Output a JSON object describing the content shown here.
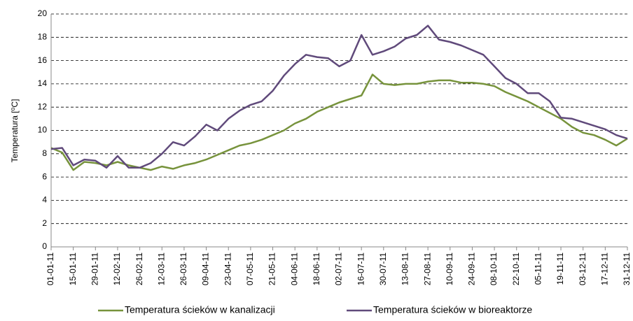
{
  "chart_data": {
    "type": "line",
    "ylabel": "Temperatura [⁰C]",
    "x": [
      "01-01-11",
      "08-01-11",
      "15-01-11",
      "22-01-11",
      "29-01-11",
      "05-02-11",
      "12-02-11",
      "19-02-11",
      "26-02-11",
      "05-03-11",
      "12-03-11",
      "19-03-11",
      "26-03-11",
      "02-04-11",
      "09-04-11",
      "16-04-11",
      "23-04-11",
      "30-04-11",
      "07-05-11",
      "14-05-11",
      "21-05-11",
      "28-05-11",
      "04-06-11",
      "11-06-11",
      "18-06-11",
      "25-06-11",
      "02-07-11",
      "09-07-11",
      "16-07-11",
      "23-07-11",
      "30-07-11",
      "06-08-11",
      "13-08-11",
      "20-08-11",
      "27-08-11",
      "03-09-11",
      "10-09-11",
      "17-09-11",
      "24-09-11",
      "01-10-11",
      "08-10-11",
      "15-10-11",
      "22-10-11",
      "29-10-11",
      "05-11-11",
      "12-11-11",
      "19-11-11",
      "26-11-11",
      "03-12-11",
      "10-12-11",
      "17-12-11",
      "24-12-11",
      "31-12-11"
    ],
    "xticks": [
      "01-01-11",
      "15-01-11",
      "29-01-11",
      "12-02-11",
      "26-02-11",
      "12-03-11",
      "26-03-11",
      "09-04-11",
      "23-04-11",
      "07-05-11",
      "21-05-11",
      "04-06-11",
      "18-06-11",
      "02-07-11",
      "16-07-11",
      "30-07-11",
      "13-08-11",
      "27-08-11",
      "10-09-11",
      "24-09-11",
      "08-10-11",
      "22-10-11",
      "05-11-11",
      "19-11-11",
      "03-12-11",
      "17-12-11",
      "31-12-11"
    ],
    "series": [
      {
        "name": "Temperatura ścieków w kanalizacji",
        "color": "#77933c",
        "values": [
          8.5,
          8.1,
          6.6,
          7.3,
          7.2,
          7.0,
          7.3,
          7.0,
          6.8,
          6.6,
          6.9,
          6.7,
          7.0,
          7.2,
          7.5,
          7.9,
          8.3,
          8.7,
          8.9,
          9.2,
          9.6,
          10.0,
          10.6,
          11.0,
          11.6,
          12.0,
          12.4,
          12.7,
          13.0,
          14.8,
          14.0,
          13.9,
          14.0,
          14.0,
          14.2,
          14.3,
          14.3,
          14.1,
          14.1,
          14.0,
          13.8,
          13.3,
          12.9,
          12.5,
          12.0,
          11.5,
          11.0,
          10.3,
          9.8,
          9.6,
          9.2,
          8.7,
          9.3
        ]
      },
      {
        "name": "Temperatura ścieków w bioreaktorze",
        "color": "#604a7b",
        "values": [
          8.4,
          8.5,
          7.0,
          7.5,
          7.4,
          6.8,
          7.8,
          6.8,
          6.8,
          7.2,
          8.0,
          9.0,
          8.7,
          9.5,
          10.5,
          10.0,
          11.0,
          11.7,
          12.2,
          12.5,
          13.4,
          14.7,
          15.7,
          16.5,
          16.3,
          16.2,
          15.5,
          16.0,
          18.2,
          16.5,
          16.8,
          17.2,
          17.9,
          18.2,
          19.0,
          17.8,
          17.6,
          17.3,
          16.9,
          16.5,
          15.5,
          14.5,
          14.0,
          13.2,
          13.2,
          12.5,
          11.1,
          11.0,
          10.7,
          10.4,
          10.1,
          9.6,
          9.3
        ]
      }
    ],
    "ylim": [
      0,
      20
    ],
    "yticks": [
      0,
      2,
      4,
      6,
      8,
      10,
      12,
      14,
      16,
      18,
      20
    ],
    "grid": true,
    "legend": "bottom"
  }
}
